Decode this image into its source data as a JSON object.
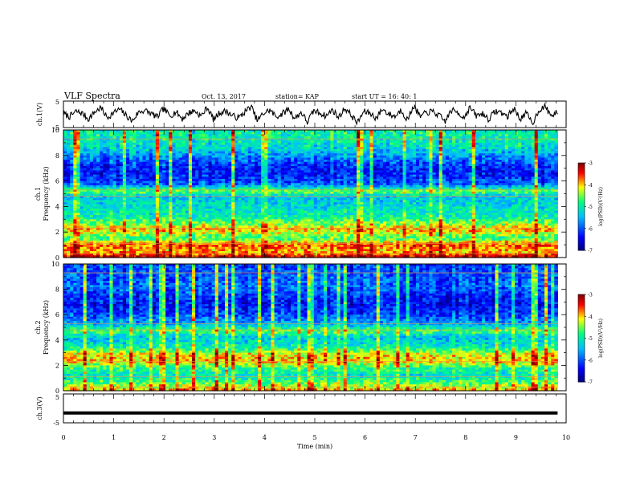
{
  "header": {
    "title": "VLF Spectra",
    "date": "Oct. 13, 2017",
    "station": "station= KAP",
    "start": "start  UT  =   16: 40: 1"
  },
  "chart_data": [
    {
      "type": "line",
      "panel": "ch1-waveform",
      "ylabel": "ch.1(V)",
      "ylim": [
        -5,
        5
      ],
      "yticks": [
        "5",
        "-5"
      ],
      "xlim": [
        0,
        10
      ],
      "x_unit": "min",
      "series": [
        {
          "values": [
            0.2,
            -0.9,
            1.1,
            0.4,
            -1.8,
            0.9,
            2.5,
            -1.3,
            0.6,
            1.9,
            -0.4,
            -2.6,
            0.8,
            1.5,
            0.3,
            -1.1,
            2.2,
            -0.6,
            1.0,
            -1.7,
            0.5,
            1.4,
            -0.8,
            2.8,
            -2.0,
            0.7,
            1.2,
            -0.5,
            -1.4,
            0.9,
            3.0,
            -2.4,
            0.4,
            1.6,
            -0.9,
            0.2,
            2.1,
            -1.6,
            0.8,
            -2.9,
            1.3,
            0.6,
            -0.7,
            1.8,
            -1.2,
            2.4,
            -0.3,
            -3.2,
            1.0,
            0.5,
            -1.5,
            2.0,
            0.1,
            -0.8,
            1.7,
            -2.2,
            3.4,
            -1.0,
            0.6,
            1.1,
            -0.4,
            -2.7,
            1.5,
            0.9,
            -1.3,
            2.6,
            -0.6,
            0.3,
            -1.9,
            1.2,
            0.7,
            -0.9,
            2.3,
            -1.7,
            0.4,
            -3.5,
            1.6,
            2.9,
            -0.5,
            0.8
          ]
        }
      ]
    },
    {
      "type": "heatmap",
      "panel": "ch1-spectrogram",
      "ylabel": "ch.1",
      "ylabel2": "Frequency (kHz)",
      "ylim": [
        0,
        10
      ],
      "yticks": [
        "0",
        "2",
        "4",
        "6",
        "8",
        "10"
      ],
      "xlim": [
        0,
        10
      ],
      "colorbar": {
        "label": "log(PSD)(V²/Hz)",
        "range": [
          -7,
          -3
        ],
        "ticks": [
          "-3",
          "-4",
          "-5",
          "-6",
          "-7"
        ]
      },
      "band_profile": [
        {
          "f": 0.1,
          "v": -3.4
        },
        {
          "f": 0.5,
          "v": -4.0
        },
        {
          "f": 1.0,
          "v": -3.6
        },
        {
          "f": 1.5,
          "v": -4.8
        },
        {
          "f": 2.2,
          "v": -3.9
        },
        {
          "f": 2.6,
          "v": -4.4
        },
        {
          "f": 3.2,
          "v": -5.0
        },
        {
          "f": 4.0,
          "v": -5.2
        },
        {
          "f": 4.8,
          "v": -5.4
        },
        {
          "f": 5.2,
          "v": -4.5
        },
        {
          "f": 5.8,
          "v": -6.0
        },
        {
          "f": 6.6,
          "v": -6.3
        },
        {
          "f": 7.2,
          "v": -6.2
        },
        {
          "f": 7.8,
          "v": -5.8
        },
        {
          "f": 8.6,
          "v": -5.2
        },
        {
          "f": 9.4,
          "v": -5.0
        },
        {
          "f": 10.0,
          "v": -5.0
        }
      ]
    },
    {
      "type": "heatmap",
      "panel": "ch2-spectrogram",
      "ylabel": "ch.2",
      "ylabel2": "Frequency (kHz)",
      "ylim": [
        0,
        10
      ],
      "yticks": [
        "0",
        "2",
        "4",
        "6",
        "8",
        "10"
      ],
      "xlim": [
        0,
        10
      ],
      "colorbar": {
        "label": "log(PSD)(V²/Hz)",
        "range": [
          -7,
          -3
        ],
        "ticks": [
          "-3",
          "-4",
          "-5",
          "-6",
          "-7"
        ]
      },
      "band_profile": [
        {
          "f": 0.1,
          "v": -4.0
        },
        {
          "f": 0.6,
          "v": -4.6
        },
        {
          "f": 1.2,
          "v": -5.2
        },
        {
          "f": 1.8,
          "v": -4.8
        },
        {
          "f": 2.3,
          "v": -4.0
        },
        {
          "f": 2.9,
          "v": -4.2
        },
        {
          "f": 3.4,
          "v": -5.0
        },
        {
          "f": 4.2,
          "v": -5.4
        },
        {
          "f": 4.7,
          "v": -4.6
        },
        {
          "f": 5.3,
          "v": -5.6
        },
        {
          "f": 6.0,
          "v": -6.1
        },
        {
          "f": 6.8,
          "v": -6.4
        },
        {
          "f": 7.5,
          "v": -6.2
        },
        {
          "f": 8.2,
          "v": -5.9
        },
        {
          "f": 9.0,
          "v": -6.0
        },
        {
          "f": 10.0,
          "v": -6.1
        }
      ]
    },
    {
      "type": "line",
      "panel": "ch3-waveform",
      "ylabel": "ch.3(V)",
      "ylim": [
        -5,
        5
      ],
      "yticks": [
        "5",
        "-5"
      ],
      "xlim": [
        0,
        10
      ],
      "series": [
        {
          "values": [
            -1.6,
            -1.6
          ]
        }
      ]
    }
  ],
  "xaxis": {
    "label": "Time  (min)",
    "ticks": [
      "0",
      "1",
      "2",
      "3",
      "4",
      "5",
      "6",
      "7",
      "8",
      "9",
      "10"
    ],
    "data_extent_max": 9.83
  },
  "colors": {
    "axis": "#000000",
    "waveform": "#000000",
    "colormap": [
      "#00007f",
      "#0000ff",
      "#00bfff",
      "#00ff80",
      "#ffff00",
      "#ff0000",
      "#7f0000"
    ]
  }
}
